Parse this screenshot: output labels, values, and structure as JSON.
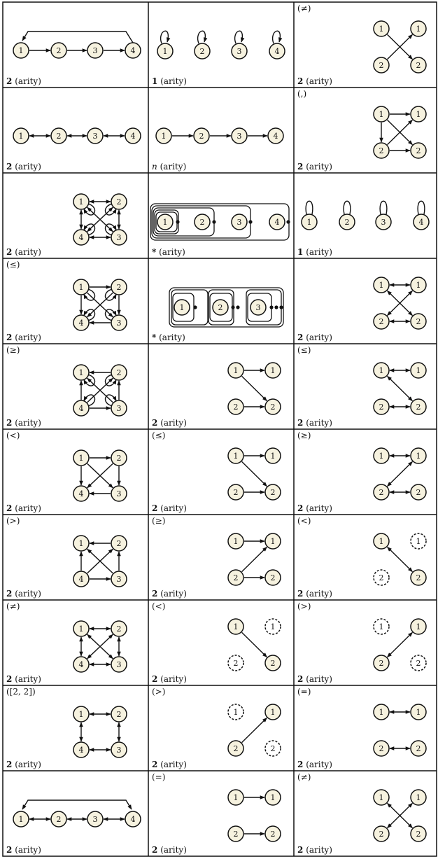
{
  "footer_suffix": "(arity)",
  "palette": {
    "node_fill": "#f6f2df",
    "stroke": "#111111",
    "grid": "#111111"
  },
  "cells": [
    {
      "id": "r0c0",
      "header": "",
      "arity": "2",
      "diagram": "chain-cycle"
    },
    {
      "id": "r0c1",
      "header": "",
      "arity": "1",
      "diagram": "row-self-loops"
    },
    {
      "id": "r0c2",
      "header": "(≠)",
      "arity": "2",
      "diagram": "bip-cross"
    },
    {
      "id": "r1c0",
      "header": "",
      "arity": "2",
      "diagram": "chain-bidir"
    },
    {
      "id": "r1c1",
      "header": "",
      "arity": "n",
      "diagram": "chain-forward"
    },
    {
      "id": "r1c2",
      "header": "(,)",
      "arity": "2",
      "diagram": "bip-all-forward"
    },
    {
      "id": "r2c0",
      "header": "",
      "arity": "2",
      "diagram": "square-full-bidir-loops"
    },
    {
      "id": "r2c1",
      "header": "",
      "arity": "*",
      "diagram": "nested-boxes-a"
    },
    {
      "id": "r2c2",
      "header": "",
      "arity": "1",
      "diagram": "row-loops-up"
    },
    {
      "id": "r3c0",
      "header": "(≤)",
      "arity": "2",
      "diagram": "square-le"
    },
    {
      "id": "r3c1",
      "header": "",
      "arity": "*",
      "diagram": "nested-boxes-b"
    },
    {
      "id": "r3c2",
      "header": "",
      "arity": "2",
      "diagram": "bip-all-bidir"
    },
    {
      "id": "r4c0",
      "header": "(≥)",
      "arity": "2",
      "diagram": "square-ge"
    },
    {
      "id": "r4c1",
      "header": "",
      "arity": "2",
      "diagram": "bip-le-forward"
    },
    {
      "id": "r4c2",
      "header": "(≤)",
      "arity": "2",
      "diagram": "bip-le-bidir"
    },
    {
      "id": "r5c0",
      "header": "(<)",
      "arity": "2",
      "diagram": "square-lt"
    },
    {
      "id": "r5c1",
      "header": "(≤)",
      "arity": "2",
      "diagram": "bip-le-single"
    },
    {
      "id": "r5c2",
      "header": "(≥)",
      "arity": "2",
      "diagram": "bip-ge-bidir"
    },
    {
      "id": "r6c0",
      "header": "(>)",
      "arity": "2",
      "diagram": "square-gt"
    },
    {
      "id": "r6c1",
      "header": "(≥)",
      "arity": "2",
      "diagram": "bip-ge-single"
    },
    {
      "id": "r6c2",
      "header": "(<)",
      "arity": "2",
      "diagram": "bip-lt-dashed"
    },
    {
      "id": "r7c0",
      "header": "(≠)",
      "arity": "2",
      "diagram": "square-ne"
    },
    {
      "id": "r7c1",
      "header": "(<)",
      "arity": "2",
      "diagram": "bip-lt-dashed-fwd"
    },
    {
      "id": "r7c2",
      "header": "(>)",
      "arity": "2",
      "diagram": "bip-gt-dashed-bidir"
    },
    {
      "id": "r8c0",
      "header": "([2, 2])",
      "arity": "2",
      "diagram": "square-pairs"
    },
    {
      "id": "r8c1",
      "header": "(>)",
      "arity": "2",
      "diagram": "bip-gt-dashed-fwd"
    },
    {
      "id": "r8c2",
      "header": "(=)",
      "arity": "2",
      "diagram": "bip-eq-bidir"
    },
    {
      "id": "r9c0",
      "header": "",
      "arity": "2",
      "diagram": "chain-bidir-cycle"
    },
    {
      "id": "r9c1",
      "header": "(=)",
      "arity": "2",
      "diagram": "bip-eq-forward"
    },
    {
      "id": "r9c2",
      "header": "(≠)",
      "arity": "2",
      "diagram": "bip-ne-bidir"
    }
  ]
}
